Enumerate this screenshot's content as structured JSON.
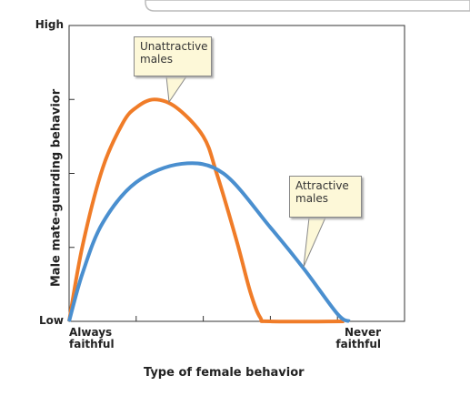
{
  "chart_data": {
    "type": "line",
    "xlabel": "Type of female behavior",
    "ylabel": "Male mate-guarding behavior",
    "xlim": [
      0,
      5
    ],
    "ylim": [
      0,
      4
    ],
    "xticks": [
      {
        "value": 0,
        "label": "Always faithful"
      },
      {
        "value": 5,
        "label": "Never faithful"
      }
    ],
    "minor_xticks": [
      1,
      2,
      3,
      4
    ],
    "yticks": [
      {
        "value": 0,
        "label": "Low"
      },
      {
        "value": 4,
        "label": "High"
      }
    ],
    "minor_yticks": [
      1,
      2,
      3
    ],
    "series": [
      {
        "name": "Unattractive males",
        "color": "#f07c28",
        "x": [
          0,
          0.2,
          0.5,
          0.8,
          1.0,
          1.27,
          1.6,
          2.0,
          2.2,
          2.5,
          2.7,
          2.85,
          3.0,
          4.1
        ],
        "values": [
          0,
          1.02,
          2.07,
          2.68,
          2.89,
          3.0,
          2.89,
          2.5,
          2.0,
          1.08,
          0.4,
          0.05,
          0,
          0
        ]
      },
      {
        "name": "Attractive males",
        "color": "#4a8fcf",
        "x": [
          0,
          0.2,
          0.5,
          1.0,
          1.68,
          2.3,
          3.0,
          3.5,
          4.0,
          4.18
        ],
        "values": [
          0,
          0.65,
          1.33,
          1.88,
          2.13,
          2.0,
          1.27,
          0.71,
          0.1,
          0
        ]
      }
    ]
  }
}
